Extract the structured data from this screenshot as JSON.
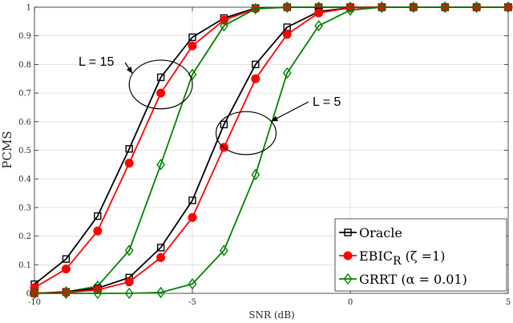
{
  "chart_data": {
    "type": "line",
    "xlabel": "SNR (dB)",
    "ylabel": "PCMS",
    "xlim": [
      -10,
      5
    ],
    "ylim": [
      0,
      1
    ],
    "xticks": [
      -10,
      -5,
      0,
      5
    ],
    "yticks": [
      0,
      0.1,
      0.2,
      0.3,
      0.4,
      0.5,
      0.6,
      0.7,
      0.8,
      0.9,
      1
    ],
    "grid": true,
    "legend_position": "bottom-right",
    "legend": [
      {
        "label": "Oracle",
        "color": "#000000",
        "marker": "square"
      },
      {
        "label": "EBIC",
        "sub": "R",
        "suffix": " (ζ =1)",
        "color": "#ff0000",
        "marker": "circle"
      },
      {
        "label": "GRRT (α = 0.01)",
        "color": "#008000",
        "marker": "diamond"
      }
    ],
    "annotations": [
      {
        "text": "L = 15",
        "target": {
          "x": -6.0,
          "y": 0.73
        },
        "ellipse": {
          "rx": 1.0,
          "ry": 0.085
        }
      },
      {
        "text": "L = 5",
        "target": {
          "x": -3.3,
          "y": 0.56
        },
        "ellipse": {
          "rx": 0.95,
          "ry": 0.075
        }
      }
    ],
    "series": [
      {
        "group": "L = 15",
        "legend_ref": 0,
        "color": "#000000",
        "marker": "square",
        "x": [
          -10,
          -9,
          -8,
          -7,
          -6,
          -5,
          -4,
          -3,
          -2,
          -1,
          0,
          1,
          2,
          3,
          4,
          5
        ],
        "y": [
          0.032,
          0.12,
          0.27,
          0.505,
          0.755,
          0.895,
          0.962,
          0.997,
          1,
          1,
          1,
          1,
          1,
          1,
          1,
          1
        ]
      },
      {
        "group": "L = 15",
        "legend_ref": 1,
        "color": "#ff0000",
        "marker": "circle",
        "x": [
          -10,
          -9,
          -8,
          -7,
          -6,
          -5,
          -4,
          -3,
          -2,
          -1,
          0,
          1,
          2,
          3,
          4,
          5
        ],
        "y": [
          0.02,
          0.085,
          0.218,
          0.455,
          0.7,
          0.865,
          0.955,
          0.995,
          1,
          1,
          1,
          1,
          1,
          1,
          1,
          1
        ]
      },
      {
        "group": "L = 15",
        "legend_ref": 2,
        "color": "#008000",
        "marker": "diamond",
        "x": [
          -10,
          -9,
          -8,
          -7,
          -6,
          -5,
          -4,
          -3,
          -2,
          -1,
          0,
          1,
          2,
          3,
          4,
          5
        ],
        "y": [
          0,
          0.005,
          0.025,
          0.15,
          0.45,
          0.765,
          0.935,
          0.995,
          1,
          1,
          1,
          1,
          1,
          1,
          1,
          1
        ]
      },
      {
        "group": "L = 5",
        "legend_ref": 0,
        "color": "#000000",
        "marker": "square",
        "x": [
          -10,
          -9,
          -8,
          -7,
          -6,
          -5,
          -4,
          -3,
          -2,
          -1,
          0,
          1,
          2,
          3,
          4,
          5
        ],
        "y": [
          0,
          0.005,
          0.018,
          0.055,
          0.16,
          0.325,
          0.59,
          0.8,
          0.93,
          0.985,
          0.998,
          1,
          1,
          1,
          1,
          1
        ]
      },
      {
        "group": "L = 5",
        "legend_ref": 1,
        "color": "#ff0000",
        "marker": "circle",
        "x": [
          -10,
          -9,
          -8,
          -7,
          -6,
          -5,
          -4,
          -3,
          -2,
          -1,
          0,
          1,
          2,
          3,
          4,
          5
        ],
        "y": [
          0,
          0.003,
          0.012,
          0.04,
          0.125,
          0.265,
          0.51,
          0.75,
          0.905,
          0.98,
          0.998,
          1,
          1,
          1,
          1,
          1
        ]
      },
      {
        "group": "L = 5",
        "legend_ref": 2,
        "color": "#008000",
        "marker": "diamond",
        "x": [
          -10,
          -9,
          -8,
          -7,
          -6,
          -5,
          -4,
          -3,
          -2,
          -1,
          0,
          1,
          2,
          3,
          4,
          5
        ],
        "y": [
          0,
          0,
          0,
          0,
          0.003,
          0.033,
          0.15,
          0.415,
          0.77,
          0.935,
          0.99,
          1,
          1,
          1,
          1,
          1
        ]
      }
    ]
  }
}
